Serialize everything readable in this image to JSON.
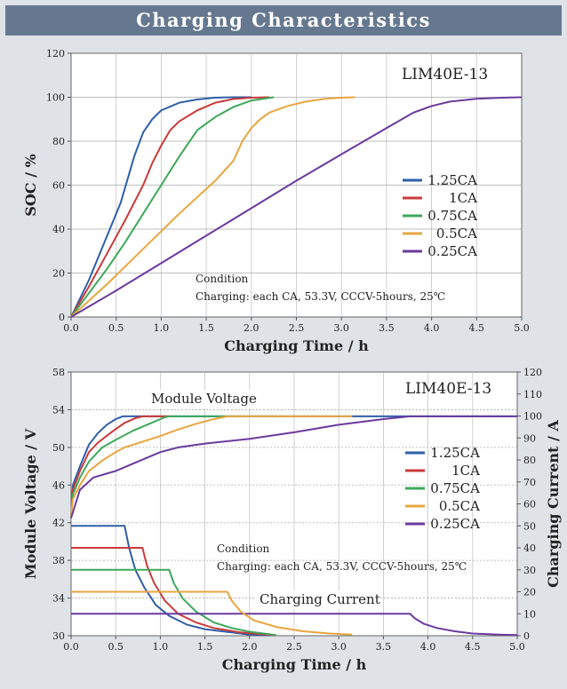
{
  "page": {
    "title": "Charging Characteristics"
  },
  "chart_data": [
    {
      "type": "line",
      "model_label": "LIM40E-13",
      "xlabel": "Charging Time / h",
      "ylabel": "SOC / %",
      "xlim": [
        0,
        5
      ],
      "ylim": [
        0,
        120
      ],
      "xticks": [
        "0.0",
        "0.5",
        "1.0",
        "1.5",
        "2.0",
        "2.5",
        "3.0",
        "3.5",
        "4.0",
        "4.5",
        "5.0"
      ],
      "yticks": [
        "0",
        "20",
        "40",
        "60",
        "80",
        "100",
        "120"
      ],
      "grid": true,
      "legend_position": "right",
      "condition_title": "Condition",
      "condition_text": "Charging: each CA, 53.3V,  CCCV-5hours,  25℃",
      "series": [
        {
          "name": "1.25CA",
          "color": "#2f5fa8",
          "points": [
            [
              0,
              0
            ],
            [
              0.2,
              17
            ],
            [
              0.4,
              37
            ],
            [
              0.55,
              52
            ],
            [
              0.7,
              73
            ],
            [
              0.8,
              84
            ],
            [
              0.9,
              90
            ],
            [
              1.0,
              94
            ],
            [
              1.2,
              97.5
            ],
            [
              1.4,
              99
            ],
            [
              1.6,
              99.8
            ],
            [
              1.8,
              100
            ],
            [
              2.0,
              100
            ]
          ]
        },
        {
          "name": "1CA",
          "color": "#c93a3a",
          "points": [
            [
              0,
              0
            ],
            [
              0.2,
              14
            ],
            [
              0.4,
              29
            ],
            [
              0.6,
              44
            ],
            [
              0.8,
              60
            ],
            [
              0.9,
              70
            ],
            [
              1.0,
              78
            ],
            [
              1.1,
              85
            ],
            [
              1.2,
              89
            ],
            [
              1.4,
              94
            ],
            [
              1.6,
              97.5
            ],
            [
              1.8,
              99.2
            ],
            [
              2.0,
              99.8
            ],
            [
              2.2,
              100
            ]
          ]
        },
        {
          "name": "0.75CA",
          "color": "#3da85a",
          "points": [
            [
              0,
              0
            ],
            [
              0.2,
              11
            ],
            [
              0.4,
              22
            ],
            [
              0.6,
              34
            ],
            [
              0.8,
              47
            ],
            [
              1.0,
              60
            ],
            [
              1.2,
              73
            ],
            [
              1.3,
              79
            ],
            [
              1.4,
              85
            ],
            [
              1.6,
              91
            ],
            [
              1.8,
              95.5
            ],
            [
              2.0,
              98.5
            ],
            [
              2.2,
              99.7
            ],
            [
              2.25,
              100
            ]
          ]
        },
        {
          "name": "0.5CA",
          "color": "#e8a640",
          "points": [
            [
              0,
              0
            ],
            [
              0.4,
              15
            ],
            [
              0.8,
              31
            ],
            [
              1.2,
              47
            ],
            [
              1.6,
              62
            ],
            [
              1.8,
              71
            ],
            [
              1.9,
              80
            ],
            [
              2.0,
              86
            ],
            [
              2.1,
              90
            ],
            [
              2.2,
              93
            ],
            [
              2.4,
              96
            ],
            [
              2.6,
              98
            ],
            [
              2.8,
              99.2
            ],
            [
              3.0,
              99.8
            ],
            [
              3.15,
              100
            ]
          ]
        },
        {
          "name": "0.25CA",
          "color": "#6a3a9e",
          "points": [
            [
              0,
              0
            ],
            [
              0.5,
              12
            ],
            [
              1.0,
              24.5
            ],
            [
              1.5,
              37
            ],
            [
              2.0,
              49.5
            ],
            [
              2.5,
              62
            ],
            [
              3.0,
              74
            ],
            [
              3.5,
              86
            ],
            [
              3.8,
              93
            ],
            [
              4.0,
              96
            ],
            [
              4.2,
              98
            ],
            [
              4.5,
              99.3
            ],
            [
              4.8,
              99.8
            ],
            [
              5.0,
              100
            ]
          ]
        }
      ]
    },
    {
      "type": "line",
      "model_label": "LIM40E-13",
      "xlabel": "Charging Time / h",
      "ylabel": "Module Voltage / V",
      "y2label": "Charging Current / A",
      "xlim": [
        0,
        5
      ],
      "ylim": [
        30,
        58
      ],
      "y2lim": [
        0,
        120
      ],
      "xticks": [
        "0.0",
        "0.5",
        "1.0",
        "1.5",
        "2.0",
        "2.5",
        "3.0",
        "3.5",
        "4.0",
        "4.5",
        "5.0"
      ],
      "yticks": [
        "30",
        "34",
        "38",
        "42",
        "46",
        "50",
        "54",
        "58"
      ],
      "y2ticks": [
        "0",
        "10",
        "20",
        "30",
        "40",
        "50",
        "60",
        "70",
        "80",
        "90",
        "100",
        "110",
        "120"
      ],
      "grid": true,
      "legend_position": "right",
      "annotations": [
        "Module Voltage",
        "Charging Current"
      ],
      "condition_title": "Condition",
      "condition_text": "Charging: each CA, 53.3V,  CCCV-5hours,  25℃",
      "series": [
        {
          "name": "1.25CA",
          "color": "#2f5fa8",
          "voltage": [
            [
              0,
              42.5
            ],
            [
              0.02,
              46
            ],
            [
              0.1,
              48
            ],
            [
              0.2,
              50.3
            ],
            [
              0.3,
              51.5
            ],
            [
              0.4,
              52.4
            ],
            [
              0.5,
              53.0
            ],
            [
              0.58,
              53.3
            ],
            [
              5.0,
              53.3
            ]
          ],
          "current": [
            [
              0,
              50
            ],
            [
              0.6,
              50
            ],
            [
              0.65,
              40
            ],
            [
              0.72,
              30
            ],
            [
              0.82,
              22
            ],
            [
              0.95,
              14
            ],
            [
              1.1,
              9
            ],
            [
              1.3,
              5
            ],
            [
              1.5,
              3
            ],
            [
              1.8,
              1.5
            ],
            [
              2.0,
              0.5
            ],
            [
              2.25,
              0.2
            ]
          ]
        },
        {
          "name": "1CA",
          "color": "#c93a3a",
          "voltage": [
            [
              0,
              42.5
            ],
            [
              0.02,
              45.5
            ],
            [
              0.1,
              47.5
            ],
            [
              0.2,
              49.5
            ],
            [
              0.3,
              50.5
            ],
            [
              0.45,
              51.6
            ],
            [
              0.6,
              52.6
            ],
            [
              0.72,
              53.1
            ],
            [
              0.8,
              53.3
            ],
            [
              1.1,
              53.3
            ]
          ],
          "current": [
            [
              0,
              40
            ],
            [
              0.8,
              40
            ],
            [
              0.85,
              32
            ],
            [
              0.93,
              24
            ],
            [
              1.05,
              16
            ],
            [
              1.2,
              10
            ],
            [
              1.4,
              6
            ],
            [
              1.6,
              3.5
            ],
            [
              1.9,
              1.5
            ],
            [
              2.2,
              0.5
            ],
            [
              2.3,
              0.2
            ]
          ]
        },
        {
          "name": "0.75CA",
          "color": "#3da85a",
          "voltage": [
            [
              0,
              42.5
            ],
            [
              0.02,
              45
            ],
            [
              0.1,
              46.8
            ],
            [
              0.2,
              48.5
            ],
            [
              0.35,
              50
            ],
            [
              0.5,
              50.8
            ],
            [
              0.7,
              51.8
            ],
            [
              0.9,
              52.6
            ],
            [
              1.05,
              53.2
            ],
            [
              1.1,
              53.3
            ],
            [
              2.3,
              53.3
            ]
          ],
          "current": [
            [
              0,
              30
            ],
            [
              1.1,
              30
            ],
            [
              1.15,
              24
            ],
            [
              1.25,
              17
            ],
            [
              1.4,
              11
            ],
            [
              1.6,
              6
            ],
            [
              1.8,
              3.5
            ],
            [
              2.0,
              1.8
            ],
            [
              2.2,
              0.8
            ],
            [
              2.3,
              0.3
            ]
          ]
        },
        {
          "name": "0.5CA",
          "color": "#e8a640",
          "voltage": [
            [
              0,
              42.5
            ],
            [
              0.02,
              44.5
            ],
            [
              0.1,
              46
            ],
            [
              0.2,
              47.5
            ],
            [
              0.35,
              48.6
            ],
            [
              0.5,
              49.5
            ],
            [
              0.6,
              50.0
            ],
            [
              0.8,
              50.6
            ],
            [
              1.0,
              51.2
            ],
            [
              1.2,
              51.9
            ],
            [
              1.4,
              52.5
            ],
            [
              1.6,
              53.0
            ],
            [
              1.75,
              53.3
            ],
            [
              3.15,
              53.3
            ]
          ]
        },
        {
          "name": "0.25CA",
          "color": "#6a3a9e",
          "voltage": [
            [
              0,
              42.5
            ],
            [
              0.05,
              44
            ],
            [
              0.1,
              45.5
            ],
            [
              0.25,
              46.8
            ],
            [
              0.5,
              47.5
            ],
            [
              0.7,
              48.3
            ],
            [
              1.0,
              49.5
            ],
            [
              1.2,
              50.0
            ],
            [
              1.5,
              50.4
            ],
            [
              2.0,
              50.9
            ],
            [
              2.5,
              51.6
            ],
            [
              3.0,
              52.4
            ],
            [
              3.5,
              53.0
            ],
            [
              3.8,
              53.3
            ],
            [
              5.0,
              53.3
            ]
          ],
          "current": [
            [
              0,
              10
            ],
            [
              3.8,
              10
            ],
            [
              3.85,
              8
            ],
            [
              3.95,
              5.5
            ],
            [
              4.1,
              3.5
            ],
            [
              4.3,
              2
            ],
            [
              4.5,
              1
            ],
            [
              4.8,
              0.5
            ],
            [
              5.0,
              0.3
            ]
          ]
        }
      ],
      "extra_current": {
        "color": "#e8a640",
        "points": [
          [
            0,
            20
          ],
          [
            1.75,
            20
          ],
          [
            1.8,
            16
          ],
          [
            1.9,
            11
          ],
          [
            2.05,
            7
          ],
          [
            2.3,
            4
          ],
          [
            2.6,
            2
          ],
          [
            2.9,
            1
          ],
          [
            3.15,
            0.5
          ]
        ]
      }
    }
  ]
}
